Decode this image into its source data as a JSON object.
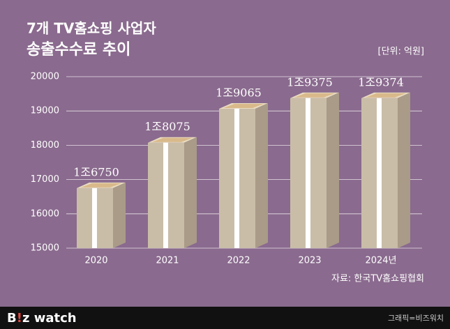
{
  "chart_data": {
    "type": "bar",
    "title": "7개 TV홈쇼핑 사업자",
    "subtitle": "송출수수료 추이",
    "unit": "[단위: 억원]",
    "categories": [
      "2020",
      "2021",
      "2022",
      "2023",
      "2024년"
    ],
    "values": [
      16750,
      18075,
      19065,
      19375,
      19374
    ],
    "value_labels": [
      "1조6750",
      "1조8075",
      "1조9065",
      "1조9375",
      "1조9374"
    ],
    "color": "#c9bda8",
    "ylim": [
      15000,
      20000
    ],
    "yticks": [
      15000,
      16000,
      17000,
      18000,
      19000,
      20000
    ],
    "grid": true,
    "source": "자료: 한국TV홈쇼핑협회"
  },
  "footer": {
    "logo": [
      "B",
      "!",
      "z watch"
    ],
    "credit": "그래픽=비즈워치"
  }
}
